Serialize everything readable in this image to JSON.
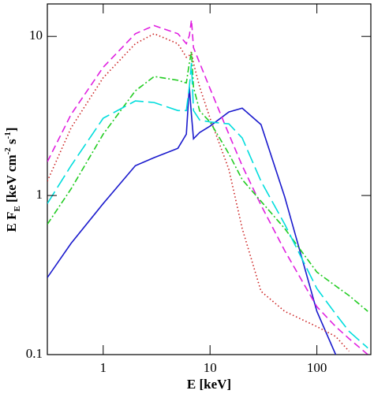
{
  "chart_data": {
    "type": "line",
    "x_label": "E [keV]",
    "y_label": [
      "E F",
      "E",
      " [keV cm",
      "-2",
      " s",
      "-1",
      "]"
    ],
    "x": [
      0.3,
      0.5,
      1,
      2,
      3,
      5,
      6,
      6.4,
      6.7,
      7,
      8,
      10,
      15,
      20,
      30,
      50,
      100,
      150,
      200,
      300
    ],
    "series": [
      {
        "color": "#1a1acd",
        "dash": "solid",
        "values": [
          0.305,
          0.5,
          0.89,
          1.54,
          1.73,
          1.98,
          2.43,
          4.8,
          3.2,
          2.27,
          2.49,
          2.73,
          3.35,
          3.54,
          2.79,
          0.98,
          0.187,
          0.1,
          null,
          null
        ]
      },
      {
        "color": "#e020e0",
        "dash": "dashed",
        "values": [
          1.63,
          3.23,
          6.4,
          10.4,
          11.7,
          10.4,
          9.0,
          10.1,
          12.7,
          8.5,
          6.8,
          4.7,
          2.43,
          1.54,
          0.87,
          0.45,
          0.2,
          0.15,
          0.126,
          0.1
        ]
      },
      {
        "color": "#cc2222",
        "dash": "dotted",
        "values": [
          1.23,
          2.66,
          5.5,
          9.0,
          10.4,
          9.0,
          7.4,
          7.6,
          8.0,
          6.8,
          4.8,
          3.06,
          1.46,
          0.62,
          0.25,
          0.187,
          0.15,
          0.13,
          0.105,
          null
        ]
      },
      {
        "color": "#22cc22",
        "dash": "dashdot",
        "values": [
          0.66,
          1.1,
          2.43,
          4.55,
          5.6,
          5.3,
          5.1,
          6.8,
          8.0,
          4.8,
          3.4,
          2.9,
          1.83,
          1.26,
          0.92,
          0.62,
          0.33,
          0.27,
          0.235,
          0.187
        ]
      },
      {
        "color": "#00dddd",
        "dash": "longdash",
        "values": [
          0.89,
          1.54,
          3.06,
          3.93,
          3.84,
          3.42,
          3.42,
          4.8,
          6.8,
          3.42,
          2.98,
          2.9,
          2.82,
          2.3,
          1.23,
          0.66,
          0.26,
          0.18,
          0.14,
          0.11
        ]
      }
    ],
    "xlim": [
      0.3,
      320
    ],
    "ylim": [
      0.1,
      16
    ],
    "xticks": [
      1,
      10,
      100
    ],
    "yticks": [
      0.1,
      1,
      10
    ],
    "xscale": "log",
    "yscale": "log"
  }
}
